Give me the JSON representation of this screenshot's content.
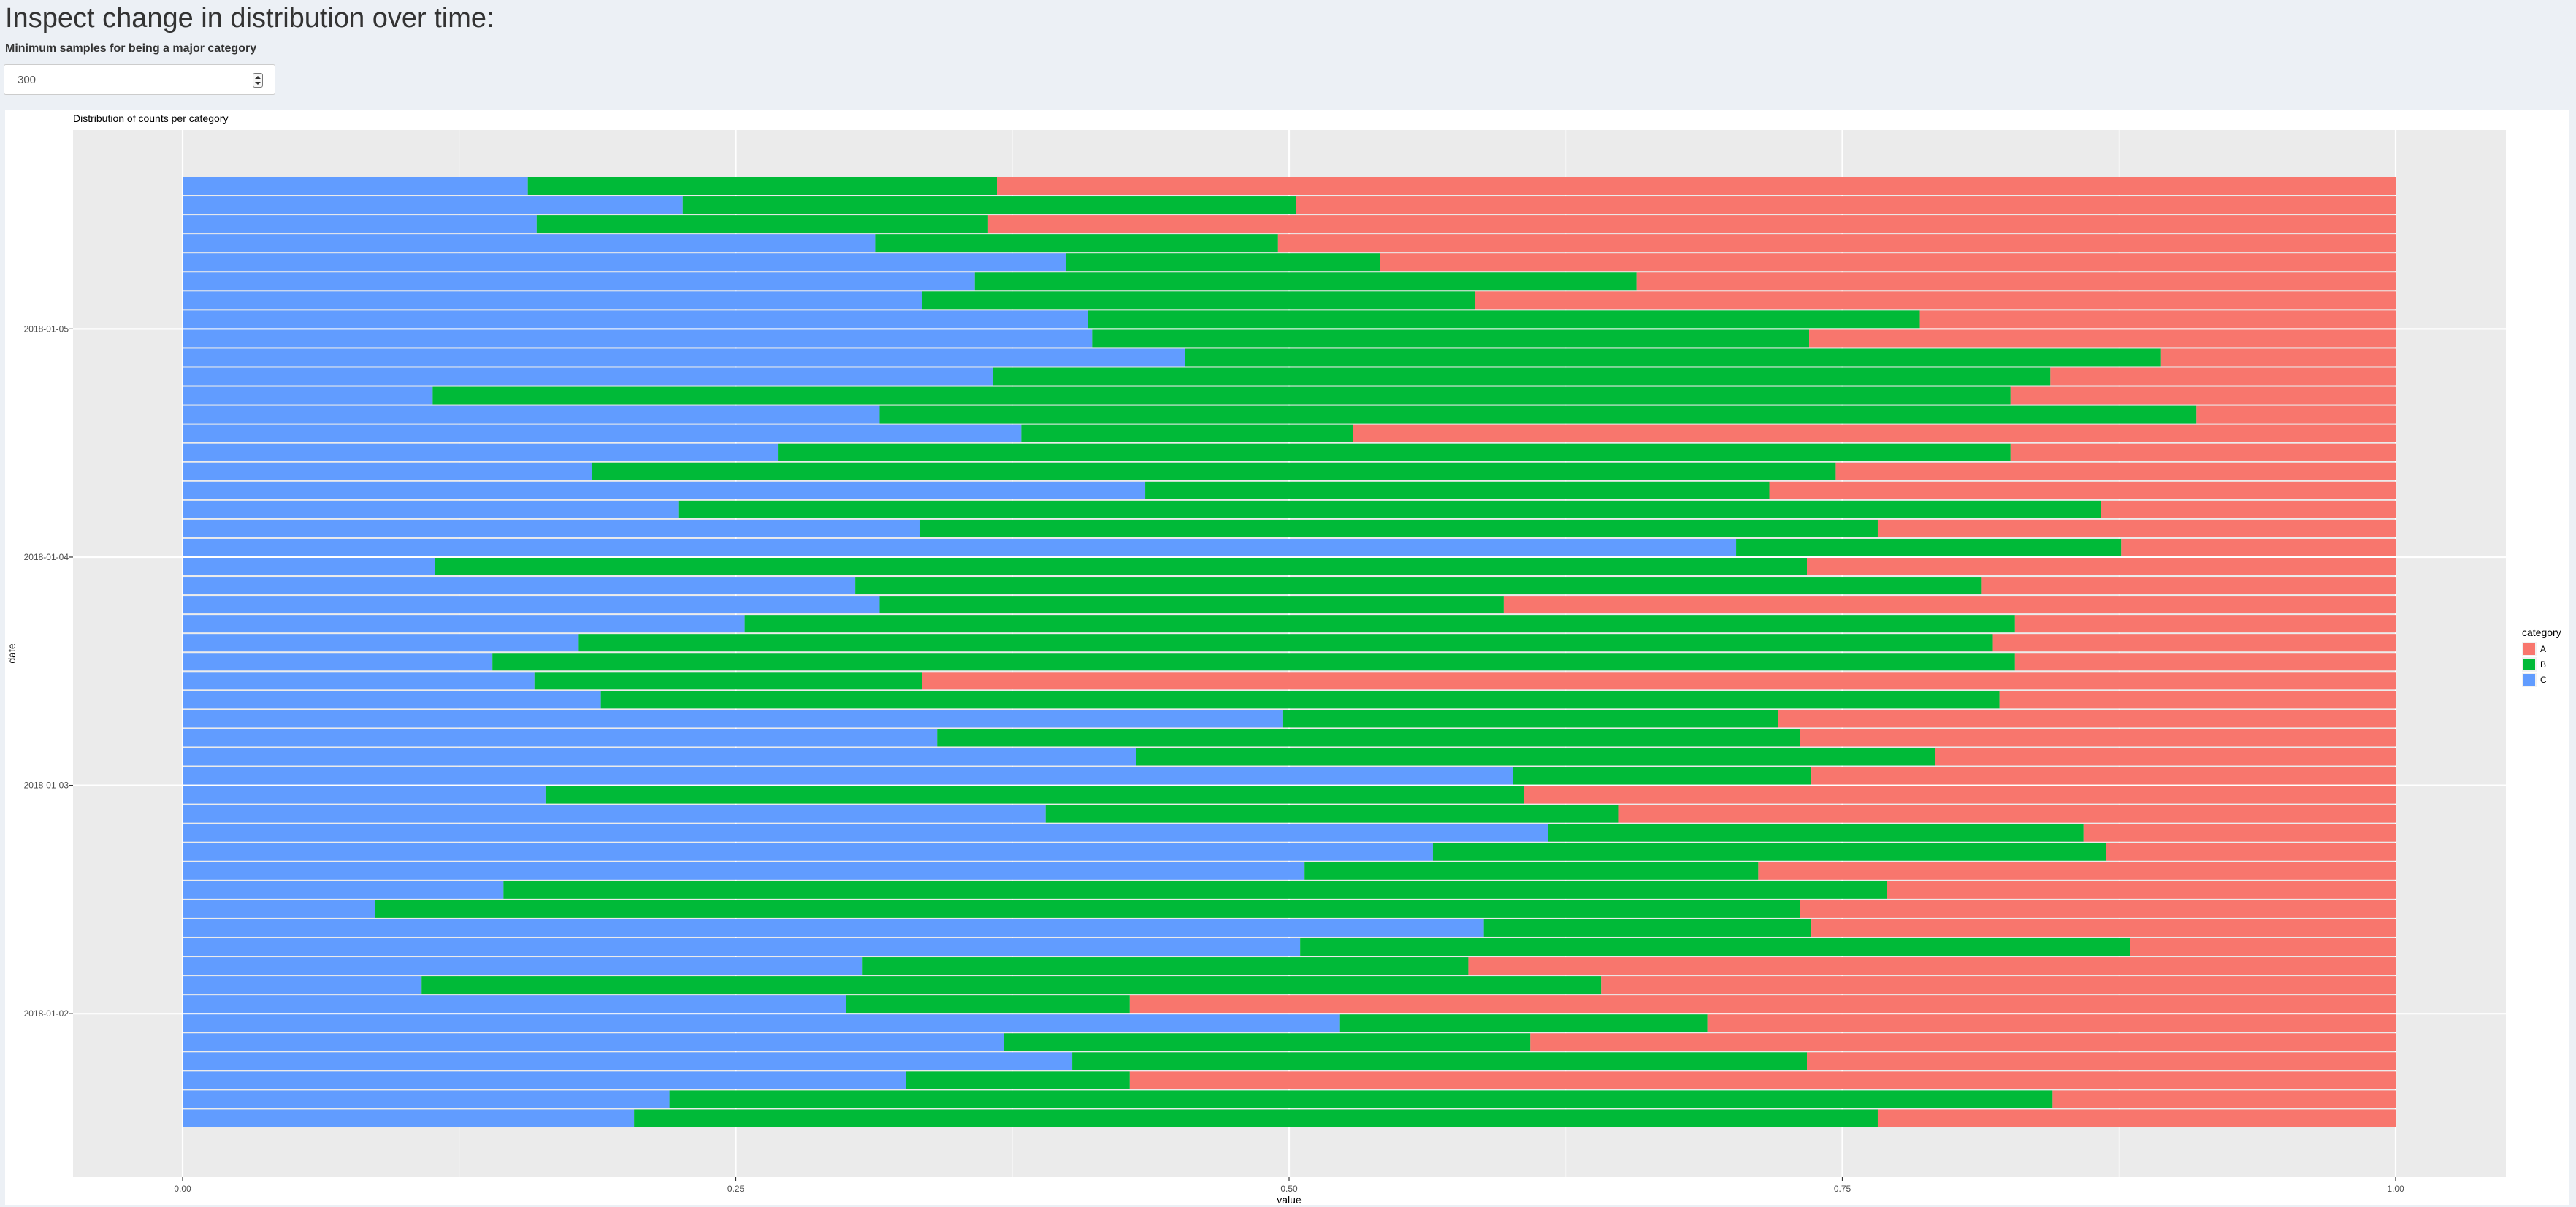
{
  "page": {
    "title": "Inspect change in distribution over time:",
    "control_label": "Minimum samples for being a major category",
    "control_value": "300"
  },
  "chart_data": {
    "type": "bar",
    "orientation": "horizontal",
    "stacked": true,
    "title": "Distribution of counts per category",
    "xlabel": "value",
    "ylabel": "date",
    "xlim": [
      0,
      1
    ],
    "x_ticks": [
      "0.00",
      "0.25",
      "0.50",
      "0.75",
      "1.00"
    ],
    "y_ticks": [
      "2018-01-05",
      "2018-01-04",
      "2018-01-03",
      "2018-01-02"
    ],
    "grid": true,
    "legend": {
      "title": "category",
      "position": "right",
      "entries": [
        "A",
        "B",
        "C"
      ]
    },
    "colors": {
      "A": "#F8766D",
      "B": "#00BA38",
      "C": "#619CFF"
    },
    "stack_order_left_to_right": [
      "C",
      "B",
      "A"
    ],
    "rows_note": "rows listed top to bottom; each row gives the share of C and B, A fills the remainder to 1.0",
    "rows": [
      {
        "C": 0.156,
        "B": 0.212
      },
      {
        "C": 0.226,
        "B": 0.277
      },
      {
        "C": 0.16,
        "B": 0.204
      },
      {
        "C": 0.313,
        "B": 0.182
      },
      {
        "C": 0.399,
        "B": 0.142
      },
      {
        "C": 0.358,
        "B": 0.299
      },
      {
        "C": 0.334,
        "B": 0.25
      },
      {
        "C": 0.409,
        "B": 0.376
      },
      {
        "C": 0.411,
        "B": 0.324
      },
      {
        "C": 0.453,
        "B": 0.441
      },
      {
        "C": 0.366,
        "B": 0.478
      },
      {
        "C": 0.113,
        "B": 0.713
      },
      {
        "C": 0.315,
        "B": 0.595
      },
      {
        "C": 0.379,
        "B": 0.15
      },
      {
        "C": 0.269,
        "B": 0.557
      },
      {
        "C": 0.185,
        "B": 0.562
      },
      {
        "C": 0.435,
        "B": 0.282
      },
      {
        "C": 0.224,
        "B": 0.643
      },
      {
        "C": 0.333,
        "B": 0.433
      },
      {
        "C": 0.702,
        "B": 0.174
      },
      {
        "C": 0.114,
        "B": 0.62
      },
      {
        "C": 0.304,
        "B": 0.509
      },
      {
        "C": 0.315,
        "B": 0.282
      },
      {
        "C": 0.254,
        "B": 0.574
      },
      {
        "C": 0.179,
        "B": 0.639
      },
      {
        "C": 0.14,
        "B": 0.688
      },
      {
        "C": 0.159,
        "B": 0.175
      },
      {
        "C": 0.189,
        "B": 0.632
      },
      {
        "C": 0.497,
        "B": 0.224
      },
      {
        "C": 0.341,
        "B": 0.39
      },
      {
        "C": 0.431,
        "B": 0.361
      },
      {
        "C": 0.601,
        "B": 0.135
      },
      {
        "C": 0.164,
        "B": 0.442
      },
      {
        "C": 0.39,
        "B": 0.259
      },
      {
        "C": 0.617,
        "B": 0.242
      },
      {
        "C": 0.565,
        "B": 0.304
      },
      {
        "C": 0.507,
        "B": 0.205
      },
      {
        "C": 0.145,
        "B": 0.625
      },
      {
        "C": 0.087,
        "B": 0.644
      },
      {
        "C": 0.588,
        "B": 0.148
      },
      {
        "C": 0.505,
        "B": 0.375
      },
      {
        "C": 0.307,
        "B": 0.274
      },
      {
        "C": 0.108,
        "B": 0.533
      },
      {
        "C": 0.3,
        "B": 0.128
      },
      {
        "C": 0.523,
        "B": 0.166
      },
      {
        "C": 0.371,
        "B": 0.238
      },
      {
        "C": 0.402,
        "B": 0.332
      },
      {
        "C": 0.327,
        "B": 0.101
      },
      {
        "C": 0.22,
        "B": 0.625
      },
      {
        "C": 0.204,
        "B": 0.562
      }
    ]
  }
}
